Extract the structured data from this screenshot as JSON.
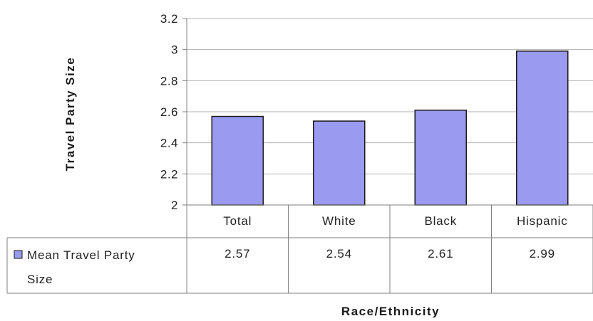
{
  "chart_data": {
    "type": "bar",
    "categories": [
      "Total",
      "White",
      "Black",
      "Hispanic"
    ],
    "series": [
      {
        "name": "Mean Travel Party Size",
        "values": [
          2.57,
          2.54,
          2.61,
          2.99
        ]
      }
    ],
    "data_table": {
      "legend_line1": "Mean Travel Party",
      "legend_line2": "Size",
      "display_values": [
        "2.57",
        "2.54",
        "2.61",
        "2.99"
      ]
    },
    "ylabel": "Travel Party Size",
    "xlabel": "Race/Ethnicity",
    "ylim": [
      2,
      3.2
    ],
    "yticks": [
      2,
      2.2,
      2.4,
      2.6,
      2.8,
      3,
      3.2
    ],
    "ytick_labels": [
      "2",
      "2.2",
      "2.4",
      "2.6",
      "2.8",
      "3",
      "3.2"
    ],
    "grid": true,
    "colors": {
      "bar_fill": "#9a9af0",
      "bar_stroke": "#1a1a1a",
      "grid": "#b0b0b0",
      "border": "#7f7f7f"
    }
  }
}
